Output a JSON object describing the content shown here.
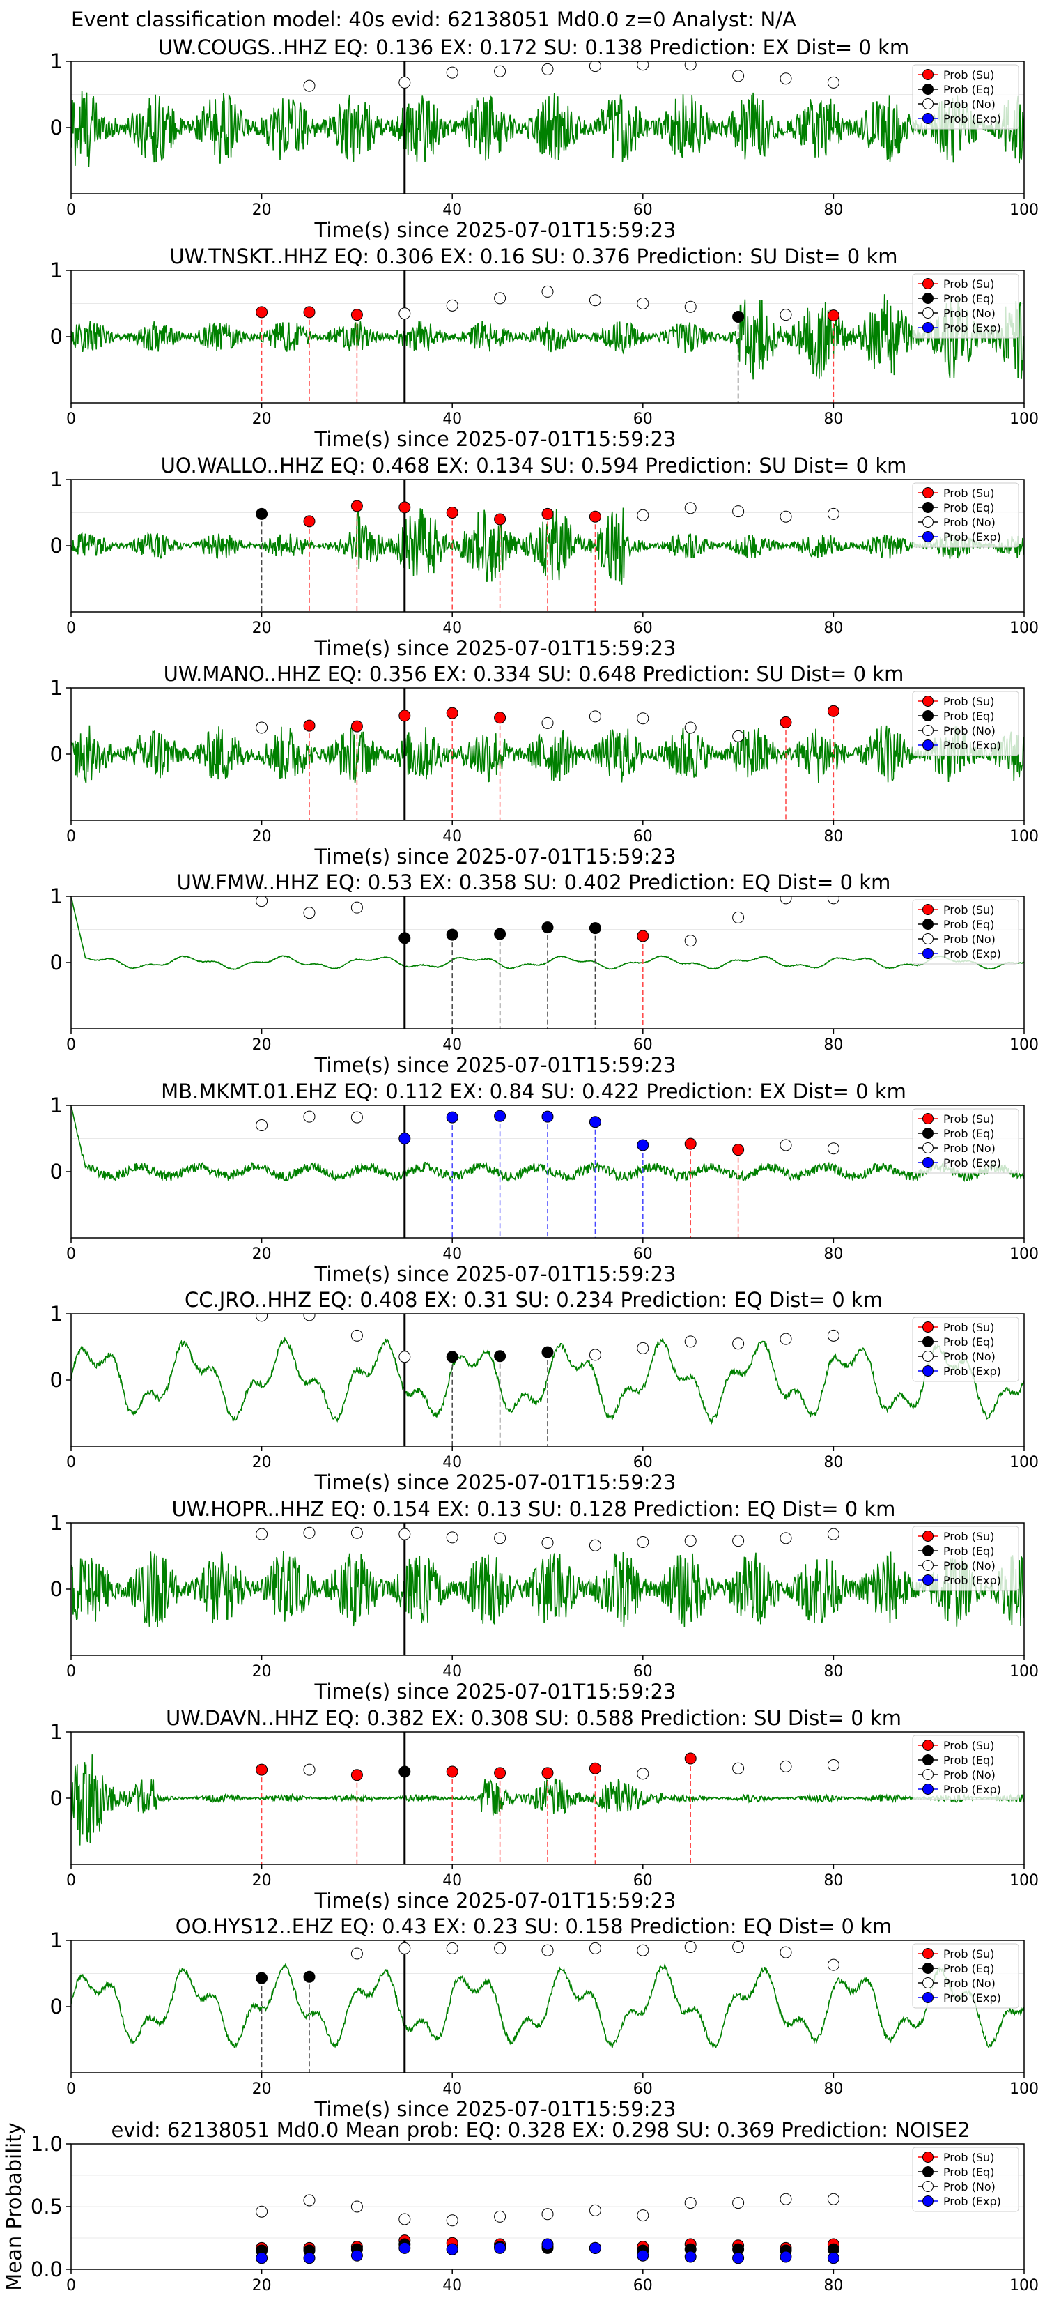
{
  "figure_title": "Event classification model: 40s evid: 62138051 Md0.0 z=0 Analyst: N/A",
  "colors": {
    "waveform": "#008000",
    "su": "#ff0000",
    "eq": "#000000",
    "no": "#ffffff",
    "exp": "#0000ff",
    "su_line": "#ff4444",
    "eq_line": "#444444",
    "exp_line": "#4444ff"
  },
  "legend": [
    "Prob (Su)",
    "Prob (Eq)",
    "Prob (No)",
    "Prob (Exp)"
  ],
  "chart_data": [
    {
      "type": "line",
      "title": "UW.COUGS..HHZ   EQ: 0.136  EX: 0.172  SU: 0.138   Prediction: EX    Dist= 0 km",
      "xlabel": "Time(s) since 2025-07-01T15:59:23",
      "xlim": [
        0,
        100
      ],
      "ylim": [
        -1,
        1
      ],
      "xticks": [
        "0",
        "20",
        "40",
        "60",
        "80",
        "100"
      ],
      "yticks": [
        "1",
        "0"
      ],
      "legend_position": "top-right",
      "waveform": {
        "kind": "noise",
        "amp": 0.55,
        "onset_amp": 0.95,
        "onset_end": 4
      },
      "origin_line": 35,
      "markers": [
        {
          "x": 25,
          "y": 0.63,
          "cls": "no"
        },
        {
          "x": 35,
          "y": 0.68,
          "cls": "no"
        },
        {
          "x": 40,
          "y": 0.83,
          "cls": "no"
        },
        {
          "x": 45,
          "y": 0.85,
          "cls": "no"
        },
        {
          "x": 50,
          "y": 0.88,
          "cls": "no"
        },
        {
          "x": 55,
          "y": 0.93,
          "cls": "no"
        },
        {
          "x": 60,
          "y": 0.95,
          "cls": "no"
        },
        {
          "x": 65,
          "y": 0.95,
          "cls": "no"
        },
        {
          "x": 70,
          "y": 0.78,
          "cls": "no"
        },
        {
          "x": 75,
          "y": 0.74,
          "cls": "no"
        },
        {
          "x": 80,
          "y": 0.68,
          "cls": "no"
        }
      ]
    },
    {
      "type": "line",
      "title": "UW.TNSKT..HHZ   EQ: 0.306  EX: 0.16  SU: 0.376   Prediction: SU    Dist= 0 km",
      "xlabel": "Time(s) since 2025-07-01T15:59:23",
      "xlim": [
        0,
        100
      ],
      "ylim": [
        -1,
        1
      ],
      "xticks": [
        "0",
        "20",
        "40",
        "60",
        "80",
        "100"
      ],
      "yticks": [
        "1",
        "0"
      ],
      "legend_position": "top-right",
      "waveform": {
        "kind": "noise",
        "amp": 0.25,
        "burst_from": 70,
        "burst_amp": 0.65
      },
      "origin_line": 35,
      "markers": [
        {
          "x": 20,
          "y": 0.37,
          "cls": "su"
        },
        {
          "x": 25,
          "y": 0.37,
          "cls": "su"
        },
        {
          "x": 30,
          "y": 0.33,
          "cls": "su"
        },
        {
          "x": 35,
          "y": 0.35,
          "cls": "no"
        },
        {
          "x": 40,
          "y": 0.47,
          "cls": "no"
        },
        {
          "x": 45,
          "y": 0.58,
          "cls": "no"
        },
        {
          "x": 50,
          "y": 0.68,
          "cls": "no"
        },
        {
          "x": 55,
          "y": 0.55,
          "cls": "no"
        },
        {
          "x": 60,
          "y": 0.5,
          "cls": "no"
        },
        {
          "x": 65,
          "y": 0.45,
          "cls": "no"
        },
        {
          "x": 70,
          "y": 0.3,
          "cls": "eq"
        },
        {
          "x": 75,
          "y": 0.33,
          "cls": "no"
        },
        {
          "x": 80,
          "y": 0.32,
          "cls": "su"
        }
      ]
    },
    {
      "type": "line",
      "title": "UO.WALLO..HHZ   EQ: 0.468  EX: 0.134  SU: 0.594   Prediction: SU    Dist= 0 km",
      "xlabel": "Time(s) since 2025-07-01T15:59:23",
      "xlim": [
        0,
        100
      ],
      "ylim": [
        -1,
        1
      ],
      "xticks": [
        "0",
        "20",
        "40",
        "60",
        "80",
        "100"
      ],
      "yticks": [
        "1",
        "0"
      ],
      "legend_position": "top-right",
      "waveform": {
        "kind": "noise",
        "amp": 0.2,
        "burst_from": 30,
        "burst_to": 58,
        "burst_amp": 0.6
      },
      "origin_line": 35,
      "markers": [
        {
          "x": 20,
          "y": 0.48,
          "cls": "eq"
        },
        {
          "x": 25,
          "y": 0.37,
          "cls": "su"
        },
        {
          "x": 30,
          "y": 0.6,
          "cls": "su"
        },
        {
          "x": 35,
          "y": 0.58,
          "cls": "su"
        },
        {
          "x": 40,
          "y": 0.5,
          "cls": "su"
        },
        {
          "x": 45,
          "y": 0.4,
          "cls": "su"
        },
        {
          "x": 50,
          "y": 0.48,
          "cls": "su"
        },
        {
          "x": 55,
          "y": 0.44,
          "cls": "su"
        },
        {
          "x": 60,
          "y": 0.46,
          "cls": "no"
        },
        {
          "x": 65,
          "y": 0.57,
          "cls": "no"
        },
        {
          "x": 70,
          "y": 0.52,
          "cls": "no"
        },
        {
          "x": 75,
          "y": 0.44,
          "cls": "no"
        },
        {
          "x": 80,
          "y": 0.48,
          "cls": "no"
        }
      ]
    },
    {
      "type": "line",
      "title": "UW.MANO..HHZ   EQ: 0.356  EX: 0.334  SU: 0.648   Prediction: SU    Dist= 0 km",
      "xlabel": "Time(s) since 2025-07-01T15:59:23",
      "xlim": [
        0,
        100
      ],
      "ylim": [
        -1,
        1
      ],
      "xticks": [
        "0",
        "20",
        "40",
        "60",
        "80",
        "100"
      ],
      "yticks": [
        "1",
        "0"
      ],
      "legend_position": "top-right",
      "waveform": {
        "kind": "noise",
        "amp": 0.45
      },
      "origin_line": 35,
      "markers": [
        {
          "x": 20,
          "y": 0.4,
          "cls": "no"
        },
        {
          "x": 25,
          "y": 0.43,
          "cls": "su"
        },
        {
          "x": 30,
          "y": 0.42,
          "cls": "su"
        },
        {
          "x": 35,
          "y": 0.58,
          "cls": "su"
        },
        {
          "x": 40,
          "y": 0.62,
          "cls": "su"
        },
        {
          "x": 45,
          "y": 0.55,
          "cls": "su"
        },
        {
          "x": 50,
          "y": 0.47,
          "cls": "no"
        },
        {
          "x": 55,
          "y": 0.57,
          "cls": "no"
        },
        {
          "x": 60,
          "y": 0.54,
          "cls": "no"
        },
        {
          "x": 65,
          "y": 0.4,
          "cls": "no"
        },
        {
          "x": 70,
          "y": 0.27,
          "cls": "no"
        },
        {
          "x": 75,
          "y": 0.48,
          "cls": "su"
        },
        {
          "x": 80,
          "y": 0.65,
          "cls": "su"
        }
      ]
    },
    {
      "type": "line",
      "title": "UW.FMW..HHZ   EQ: 0.53  EX: 0.358  SU: 0.402   Prediction: EQ    Dist= 0 km",
      "xlabel": "Time(s) since 2025-07-01T15:59:23",
      "xlim": [
        0,
        100
      ],
      "ylim": [
        -1,
        1
      ],
      "xticks": [
        "0",
        "20",
        "40",
        "60",
        "80",
        "100"
      ],
      "yticks": [
        "1",
        "0"
      ],
      "legend_position": "top-right",
      "waveform": {
        "kind": "smooth",
        "amp": 0.09,
        "spike_start": 1.0
      },
      "origin_line": 35,
      "markers": [
        {
          "x": 20,
          "y": 0.93,
          "cls": "no"
        },
        {
          "x": 25,
          "y": 0.75,
          "cls": "no"
        },
        {
          "x": 30,
          "y": 0.83,
          "cls": "no"
        },
        {
          "x": 35,
          "y": 0.37,
          "cls": "eq"
        },
        {
          "x": 40,
          "y": 0.42,
          "cls": "eq"
        },
        {
          "x": 45,
          "y": 0.43,
          "cls": "eq"
        },
        {
          "x": 50,
          "y": 0.53,
          "cls": "eq"
        },
        {
          "x": 55,
          "y": 0.52,
          "cls": "eq"
        },
        {
          "x": 60,
          "y": 0.4,
          "cls": "su"
        },
        {
          "x": 65,
          "y": 0.33,
          "cls": "no"
        },
        {
          "x": 70,
          "y": 0.68,
          "cls": "no"
        },
        {
          "x": 75,
          "y": 0.97,
          "cls": "no"
        },
        {
          "x": 80,
          "y": 0.97,
          "cls": "no"
        }
      ]
    },
    {
      "type": "line",
      "title": "MB.MKMT.01.EHZ   EQ: 0.112  EX: 0.84  SU: 0.422   Prediction: EX    Dist= 0 km",
      "xlabel": "Time(s) since 2025-07-01T15:59:23",
      "xlim": [
        0,
        100
      ],
      "ylim": [
        -1,
        1
      ],
      "xticks": [
        "0",
        "20",
        "40",
        "60",
        "80",
        "100"
      ],
      "yticks": [
        "1",
        "0"
      ],
      "legend_position": "top-right",
      "waveform": {
        "kind": "mixed",
        "amp": 0.14,
        "spike_start": 1.0
      },
      "origin_line": 35,
      "markers": [
        {
          "x": 20,
          "y": 0.7,
          "cls": "no"
        },
        {
          "x": 25,
          "y": 0.83,
          "cls": "no"
        },
        {
          "x": 30,
          "y": 0.82,
          "cls": "no"
        },
        {
          "x": 35,
          "y": 0.5,
          "cls": "exp"
        },
        {
          "x": 40,
          "y": 0.82,
          "cls": "exp"
        },
        {
          "x": 45,
          "y": 0.84,
          "cls": "exp"
        },
        {
          "x": 50,
          "y": 0.83,
          "cls": "exp"
        },
        {
          "x": 55,
          "y": 0.75,
          "cls": "exp"
        },
        {
          "x": 60,
          "y": 0.4,
          "cls": "exp"
        },
        {
          "x": 65,
          "y": 0.42,
          "cls": "su"
        },
        {
          "x": 70,
          "y": 0.33,
          "cls": "su"
        },
        {
          "x": 75,
          "y": 0.4,
          "cls": "no"
        },
        {
          "x": 80,
          "y": 0.35,
          "cls": "no"
        }
      ]
    },
    {
      "type": "line",
      "title": "CC.JRO..HHZ   EQ: 0.408  EX: 0.31  SU: 0.234   Prediction: EQ    Dist= 0 km",
      "xlabel": "Time(s) since 2025-07-01T15:59:23",
      "xlim": [
        0,
        100
      ],
      "ylim": [
        -1,
        1
      ],
      "xticks": [
        "0",
        "20",
        "40",
        "60",
        "80",
        "100"
      ],
      "yticks": [
        "1",
        "0"
      ],
      "legend_position": "top-right",
      "waveform": {
        "kind": "smooth",
        "amp": 0.55
      },
      "origin_line": 35,
      "markers": [
        {
          "x": 20,
          "y": 0.97,
          "cls": "no"
        },
        {
          "x": 25,
          "y": 0.98,
          "cls": "no"
        },
        {
          "x": 30,
          "y": 0.67,
          "cls": "no"
        },
        {
          "x": 35,
          "y": 0.35,
          "cls": "no"
        },
        {
          "x": 40,
          "y": 0.35,
          "cls": "eq"
        },
        {
          "x": 45,
          "y": 0.36,
          "cls": "eq"
        },
        {
          "x": 50,
          "y": 0.42,
          "cls": "eq"
        },
        {
          "x": 55,
          "y": 0.38,
          "cls": "no"
        },
        {
          "x": 60,
          "y": 0.48,
          "cls": "no"
        },
        {
          "x": 65,
          "y": 0.58,
          "cls": "no"
        },
        {
          "x": 70,
          "y": 0.55,
          "cls": "no"
        },
        {
          "x": 75,
          "y": 0.62,
          "cls": "no"
        },
        {
          "x": 80,
          "y": 0.67,
          "cls": "no"
        }
      ]
    },
    {
      "type": "line",
      "title": "UW.HOPR..HHZ   EQ: 0.154  EX: 0.13  SU: 0.128   Prediction: EQ    Dist= 0 km",
      "xlabel": "Time(s) since 2025-07-01T15:59:23",
      "xlim": [
        0,
        100
      ],
      "ylim": [
        -1,
        1
      ],
      "xticks": [
        "0",
        "20",
        "40",
        "60",
        "80",
        "100"
      ],
      "yticks": [
        "1",
        "0"
      ],
      "legend_position": "top-right",
      "waveform": {
        "kind": "noise",
        "amp": 0.6
      },
      "origin_line": 35,
      "markers": [
        {
          "x": 20,
          "y": 0.83,
          "cls": "no"
        },
        {
          "x": 25,
          "y": 0.85,
          "cls": "no"
        },
        {
          "x": 30,
          "y": 0.85,
          "cls": "no"
        },
        {
          "x": 35,
          "y": 0.83,
          "cls": "no"
        },
        {
          "x": 40,
          "y": 0.78,
          "cls": "no"
        },
        {
          "x": 45,
          "y": 0.77,
          "cls": "no"
        },
        {
          "x": 50,
          "y": 0.7,
          "cls": "no"
        },
        {
          "x": 55,
          "y": 0.66,
          "cls": "no"
        },
        {
          "x": 60,
          "y": 0.71,
          "cls": "no"
        },
        {
          "x": 65,
          "y": 0.73,
          "cls": "no"
        },
        {
          "x": 70,
          "y": 0.73,
          "cls": "no"
        },
        {
          "x": 75,
          "y": 0.77,
          "cls": "no"
        },
        {
          "x": 80,
          "y": 0.83,
          "cls": "no"
        }
      ]
    },
    {
      "type": "line",
      "title": "UW.DAVN..HHZ   EQ: 0.382  EX: 0.308  SU: 0.588   Prediction: SU    Dist= 0 km",
      "xlabel": "Time(s) since 2025-07-01T15:59:23",
      "xlim": [
        0,
        100
      ],
      "ylim": [
        -1,
        1
      ],
      "xticks": [
        "0",
        "20",
        "40",
        "60",
        "80",
        "100"
      ],
      "yticks": [
        "1",
        "0"
      ],
      "legend_position": "top-right",
      "waveform": {
        "kind": "noise",
        "amp": 0.06,
        "onset_amp": 0.9,
        "onset_end": 9,
        "burst_from": 43,
        "burst_to": 62,
        "burst_amp": 0.3
      },
      "origin_line": 35,
      "markers": [
        {
          "x": 20,
          "y": 0.43,
          "cls": "su"
        },
        {
          "x": 25,
          "y": 0.43,
          "cls": "no"
        },
        {
          "x": 30,
          "y": 0.35,
          "cls": "su"
        },
        {
          "x": 35,
          "y": 0.4,
          "cls": "eq"
        },
        {
          "x": 40,
          "y": 0.4,
          "cls": "su"
        },
        {
          "x": 45,
          "y": 0.38,
          "cls": "su"
        },
        {
          "x": 50,
          "y": 0.38,
          "cls": "su"
        },
        {
          "x": 55,
          "y": 0.45,
          "cls": "su"
        },
        {
          "x": 60,
          "y": 0.37,
          "cls": "no"
        },
        {
          "x": 65,
          "y": 0.6,
          "cls": "su"
        },
        {
          "x": 70,
          "y": 0.45,
          "cls": "no"
        },
        {
          "x": 75,
          "y": 0.48,
          "cls": "no"
        },
        {
          "x": 80,
          "y": 0.5,
          "cls": "no"
        }
      ]
    },
    {
      "type": "line",
      "title": "OO.HYS12..EHZ   EQ: 0.43  EX: 0.23  SU: 0.158   Prediction: EQ    Dist= 0 km",
      "xlabel": "Time(s) since 2025-07-01T15:59:23",
      "xlim": [
        0,
        100
      ],
      "ylim": [
        -1,
        1
      ],
      "xticks": [
        "0",
        "20",
        "40",
        "60",
        "80",
        "100"
      ],
      "yticks": [
        "1",
        "0"
      ],
      "legend_position": "top-right",
      "waveform": {
        "kind": "smooth",
        "amp": 0.55
      },
      "origin_line": 35,
      "markers": [
        {
          "x": 20,
          "y": 0.43,
          "cls": "eq"
        },
        {
          "x": 25,
          "y": 0.45,
          "cls": "eq"
        },
        {
          "x": 30,
          "y": 0.8,
          "cls": "no"
        },
        {
          "x": 35,
          "y": 0.88,
          "cls": "no"
        },
        {
          "x": 40,
          "y": 0.88,
          "cls": "no"
        },
        {
          "x": 45,
          "y": 0.88,
          "cls": "no"
        },
        {
          "x": 50,
          "y": 0.85,
          "cls": "no"
        },
        {
          "x": 55,
          "y": 0.88,
          "cls": "no"
        },
        {
          "x": 60,
          "y": 0.85,
          "cls": "no"
        },
        {
          "x": 65,
          "y": 0.9,
          "cls": "no"
        },
        {
          "x": 70,
          "y": 0.9,
          "cls": "no"
        },
        {
          "x": 75,
          "y": 0.82,
          "cls": "no"
        },
        {
          "x": 80,
          "y": 0.63,
          "cls": "no"
        }
      ]
    },
    {
      "type": "scatter",
      "title": "evid: 62138051   Md0.0   Mean prob:   EQ: 0.328  EX: 0.298  SU: 0.369   Prediction: NOISE2",
      "ylabel": "Mean Probability",
      "xlim": [
        0,
        100
      ],
      "ylim": [
        0,
        1
      ],
      "xticks": [
        "0",
        "20",
        "40",
        "60",
        "80",
        "100"
      ],
      "yticks": [
        "1.0",
        "0.5",
        "0.0"
      ],
      "legend_position": "top-right",
      "x": [
        20,
        25,
        30,
        35,
        40,
        45,
        50,
        55,
        60,
        65,
        70,
        75,
        80
      ],
      "series": [
        {
          "name": "Prob (No)",
          "cls": "no",
          "values": [
            0.46,
            0.55,
            0.5,
            0.4,
            0.39,
            0.42,
            0.44,
            0.47,
            0.43,
            0.53,
            0.53,
            0.56,
            0.56
          ]
        },
        {
          "name": "Prob (Su)",
          "cls": "su",
          "values": [
            0.17,
            0.17,
            0.18,
            0.23,
            0.21,
            0.2,
            0.18,
            0.17,
            0.18,
            0.2,
            0.19,
            0.17,
            0.2
          ]
        },
        {
          "name": "Prob (Eq)",
          "cls": "eq",
          "values": [
            0.15,
            0.15,
            0.16,
            0.2,
            0.16,
            0.18,
            0.17,
            0.17,
            0.15,
            0.16,
            0.16,
            0.15,
            0.16
          ]
        },
        {
          "name": "Prob (Exp)",
          "cls": "exp",
          "values": [
            0.09,
            0.09,
            0.11,
            0.17,
            0.16,
            0.17,
            0.2,
            0.17,
            0.11,
            0.1,
            0.09,
            0.1,
            0.09
          ]
        }
      ]
    }
  ]
}
